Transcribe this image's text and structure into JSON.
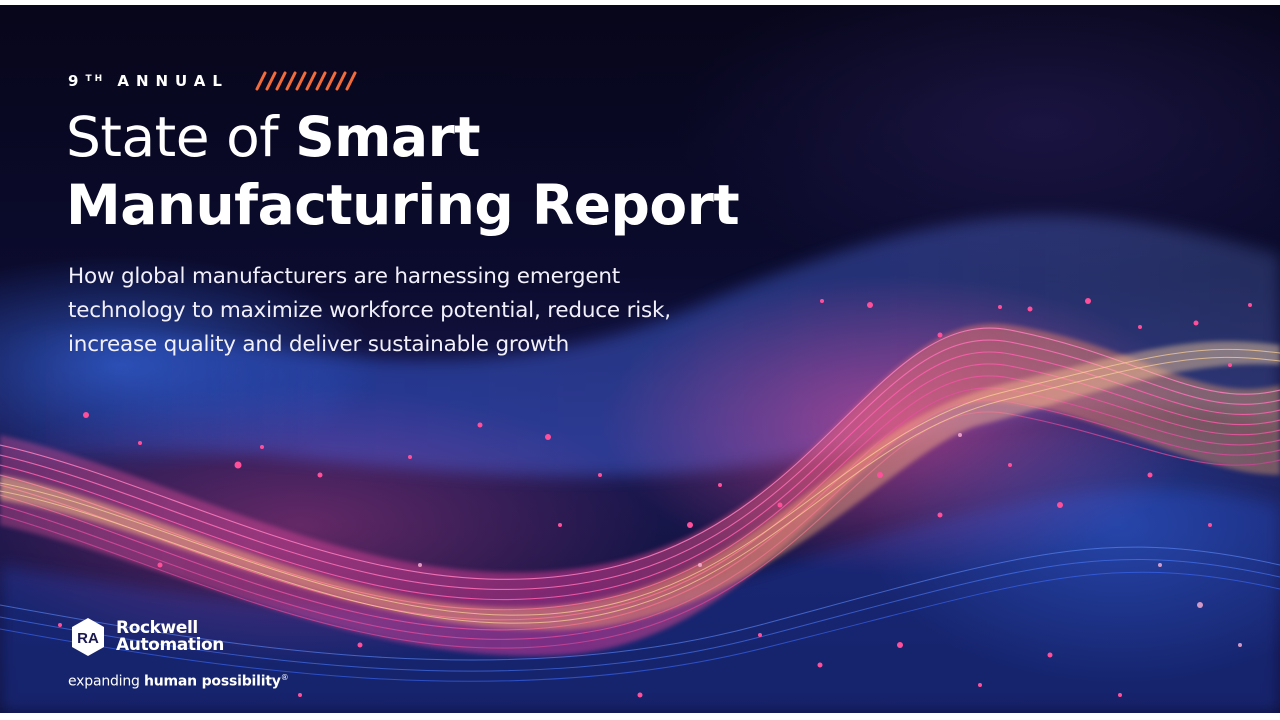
{
  "eyebrow": {
    "number": "9",
    "ordinal": "TH",
    "word": "ANNUAL"
  },
  "title": {
    "line1_light": "State of ",
    "line1_bold": "Smart",
    "line2": "Manufacturing Report"
  },
  "subtitle": "How global manufacturers are harnessing emergent technology to maximize workforce potential, reduce risk, increase quality and deliver sustainable growth",
  "brand": {
    "badge_letters": "RA",
    "name_line1": "Rockwell",
    "name_line2": "Automation",
    "tagline_regular": "expanding ",
    "tagline_bold": "human possibility",
    "trademark": "®"
  },
  "colors": {
    "accent_orange": "#f36b3a",
    "wave_magenta": "#e23a9a",
    "wave_blue": "#3b6cff",
    "wave_gold": "#ffb066"
  }
}
